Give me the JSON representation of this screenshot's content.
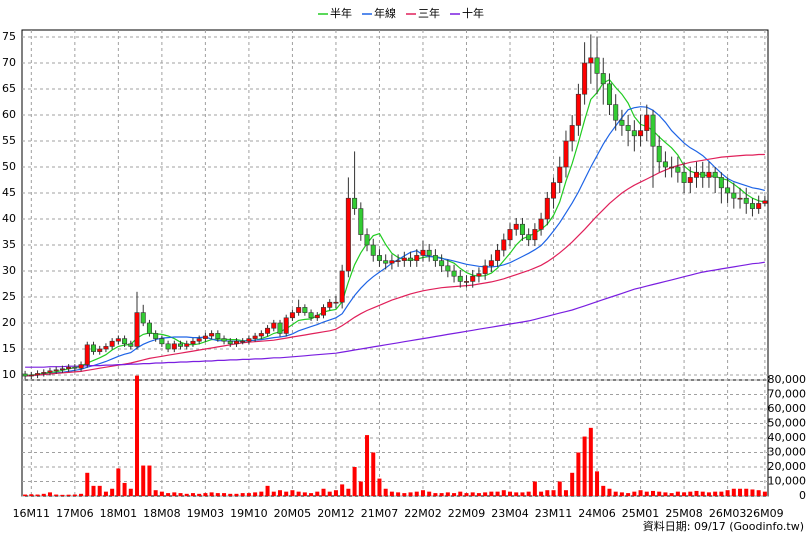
{
  "chart_data": {
    "type": "candlestick",
    "annotation": "資料日期: 09/17 (Goodinfo.tw)",
    "up_color": "#ff0000",
    "down_color": "#33cc33",
    "categories": [
      null,
      "16M11",
      null,
      null,
      null,
      null,
      null,
      null,
      "17M06",
      null,
      null,
      null,
      null,
      null,
      null,
      "18M01",
      null,
      null,
      null,
      null,
      null,
      null,
      "18M08",
      null,
      null,
      null,
      null,
      null,
      null,
      "19M03",
      null,
      null,
      null,
      null,
      null,
      null,
      "19M10",
      null,
      null,
      null,
      null,
      null,
      null,
      "20M05",
      null,
      null,
      null,
      null,
      null,
      null,
      "20M12",
      null,
      null,
      null,
      null,
      null,
      null,
      "21M07",
      null,
      null,
      null,
      null,
      null,
      null,
      "22M02",
      null,
      null,
      null,
      null,
      null,
      null,
      "22M09",
      null,
      null,
      null,
      null,
      null,
      null,
      "23M04",
      null,
      null,
      null,
      null,
      null,
      null,
      "23M11",
      null,
      null,
      null,
      null,
      null,
      null,
      "24M06",
      null,
      null,
      null,
      null,
      null,
      null,
      "25M01",
      null,
      null,
      null,
      null,
      null,
      null,
      "25M08",
      null,
      null,
      null,
      null,
      null,
      null,
      "26M03",
      null,
      null,
      null,
      null,
      null,
      "26M09"
    ],
    "open": [
      10.2,
      9.8,
      10,
      10.3,
      10.5,
      10.8,
      11,
      11.2,
      11.5,
      11.3,
      12,
      15.8,
      14.5,
      15,
      15.5,
      16.5,
      17,
      16,
      15.5,
      22,
      20,
      18,
      17,
      16,
      15,
      16,
      15.5,
      16,
      16.5,
      17,
      17.5,
      18,
      17,
      16.5,
      16,
      16.5,
      16.5,
      17,
      17.5,
      18,
      19,
      20,
      18,
      21,
      22,
      23,
      22,
      21,
      21.5,
      23,
      24,
      24,
      30,
      44,
      42,
      37,
      35,
      33,
      32,
      31.5,
      32,
      32,
      32.5,
      32,
      33,
      34,
      33,
      32,
      31,
      30,
      29,
      28,
      28,
      29,
      29.5,
      31,
      32,
      34,
      36,
      38,
      39,
      37,
      36,
      38,
      40,
      44,
      47,
      50,
      55,
      58,
      64,
      70,
      71,
      68,
      66,
      62,
      59,
      58,
      57,
      56,
      57,
      60,
      54,
      51,
      50,
      50,
      49,
      47,
      48,
      49,
      48,
      49,
      48,
      46,
      45,
      44,
      44,
      43,
      42,
      43
    ],
    "high": [
      10.8,
      10.6,
      10.9,
      11.1,
      11.4,
      11.6,
      11.8,
      12.1,
      12.1,
      12.6,
      16.4,
      16.4,
      15.6,
      16.1,
      17.1,
      17.6,
      17.6,
      16.6,
      26,
      23.5,
      20.6,
      18.6,
      17.6,
      16.6,
      16.6,
      16.6,
      16.6,
      17.1,
      17.6,
      18.1,
      18.6,
      18.6,
      17.6,
      17.1,
      17.1,
      17.1,
      17.6,
      18.1,
      18.6,
      19.6,
      20.6,
      20.6,
      21.6,
      22.6,
      24.5,
      23.6,
      22.6,
      22.1,
      23.6,
      24.6,
      25.2,
      31.2,
      48,
      53,
      43.2,
      38.2,
      36.2,
      34.2,
      33.2,
      33.2,
      33.2,
      33.7,
      33.7,
      34.2,
      35.8,
      35.2,
      34.2,
      33.2,
      32.2,
      31.2,
      30.2,
      29.2,
      30.2,
      30.7,
      32.2,
      33.2,
      35.2,
      37.2,
      39.2,
      40.2,
      40.2,
      38.2,
      39.2,
      41.2,
      45.2,
      48,
      52,
      57,
      60,
      66,
      74,
      75.5,
      75,
      71,
      68,
      64,
      61,
      60,
      59,
      60,
      62,
      61,
      56,
      53,
      52,
      52,
      51,
      50,
      51,
      51,
      51,
      50,
      49,
      48,
      47,
      46,
      46,
      44,
      44.5,
      44.5
    ],
    "low": [
      9.2,
      9.2,
      9.4,
      9.7,
      9.9,
      10.2,
      10.4,
      10.6,
      10.7,
      10.7,
      11.4,
      13.9,
      13.9,
      14.4,
      14.9,
      15.9,
      15.4,
      14.9,
      14.9,
      19.4,
      17.4,
      16.4,
      15.4,
      14.4,
      14.4,
      14.9,
      14.9,
      15.4,
      15.9,
      16.4,
      16.9,
      16.4,
      15.9,
      15.4,
      15.4,
      15.9,
      15.9,
      16.4,
      16.9,
      17.4,
      18.4,
      17.4,
      17.4,
      20.4,
      21.4,
      21.4,
      20.4,
      20.4,
      20.9,
      22.4,
      22.8,
      22.8,
      28.8,
      40.8,
      35.8,
      33.8,
      31.8,
      30.8,
      30.3,
      30.3,
      30.8,
      30.8,
      30.8,
      30.8,
      31.8,
      31.8,
      30.8,
      29.8,
      28.8,
      27.8,
      26.8,
      26.8,
      26.8,
      27.8,
      28.3,
      29.8,
      30.8,
      32.8,
      34.8,
      36.8,
      35.8,
      34.8,
      34.8,
      36.8,
      38.8,
      42,
      45,
      48,
      53,
      56,
      62,
      66,
      64,
      62,
      60,
      57,
      56,
      54,
      53,
      54,
      55,
      46,
      49,
      48,
      48,
      47,
      45,
      45,
      46,
      46,
      46,
      45,
      43,
      43,
      42,
      42,
      41,
      40.5,
      41,
      42.5
    ],
    "close": [
      9.8,
      10,
      10.3,
      10.5,
      10.8,
      11,
      11.2,
      11.5,
      11.3,
      12,
      15.8,
      14.5,
      15,
      15.5,
      16.5,
      17,
      16,
      15.5,
      22,
      20,
      18,
      17,
      16,
      15,
      16,
      15.5,
      16,
      16.5,
      17,
      17.5,
      18,
      17,
      16.5,
      16,
      16.5,
      16.5,
      17,
      17.5,
      18,
      19,
      20,
      18,
      21,
      22,
      23,
      22,
      21,
      21.5,
      23,
      24,
      24,
      30,
      44,
      42,
      37,
      35,
      33,
      32,
      31.5,
      32,
      32,
      32.5,
      32,
      33,
      34,
      33,
      32,
      31,
      30,
      29,
      28,
      28,
      29,
      29.5,
      31,
      32,
      34,
      36,
      38,
      39,
      37,
      36,
      38,
      40,
      44,
      47,
      50,
      55,
      58,
      64,
      70,
      71,
      68,
      66,
      62,
      59,
      58,
      57,
      56,
      57,
      60,
      54,
      51,
      50,
      50,
      49,
      47,
      48,
      49,
      48,
      49,
      48,
      46,
      45,
      44,
      44,
      43,
      42,
      43,
      43.5
    ],
    "ylim": [
      9.04,
      76.35
    ],
    "yticks": [
      10,
      15,
      20,
      25,
      30,
      35,
      40,
      45,
      50,
      55,
      60,
      65,
      70,
      75
    ],
    "grid": true,
    "series": [
      {
        "name": "半年",
        "color": "#22cc22",
        "values": [
          9.9,
          10,
          10.1,
          10.3,
          10.5,
          10.6,
          10.9,
          11.2,
          11.4,
          11.7,
          12.3,
          12.8,
          13.3,
          13.9,
          14.8,
          15.5,
          15.75,
          15.9,
          17.1,
          17.8,
          18.1,
          17.9,
          17.8,
          17.5,
          17,
          16.3,
          15.9,
          15.8,
          16,
          16.4,
          16.8,
          16.9,
          16.9,
          16.8,
          16.8,
          16.6,
          16.6,
          16.7,
          17,
          17.4,
          18,
          18.3,
          18.9,
          19.7,
          20.5,
          20.7,
          20.8,
          21.4,
          22.1,
          22.4,
          22.6,
          24.1,
          27.9,
          31.2,
          33.5,
          35.3,
          36.8,
          37.2,
          35.1,
          33.4,
          32.6,
          32.2,
          32,
          32.3,
          32.6,
          32.8,
          32.8,
          32.5,
          32,
          31.5,
          30.5,
          29.7,
          29.2,
          29,
          29.1,
          29.6,
          30.6,
          32,
          33.4,
          35,
          36.2,
          36.7,
          37.3,
          38,
          39,
          40.7,
          43.3,
          47.3,
          50.7,
          54.7,
          59,
          63,
          64.3,
          66.2,
          66.8,
          65.3,
          64,
          62.3,
          59.7,
          58.2,
          57.8,
          57,
          55.8,
          54.7,
          53.7,
          52.3,
          50.2,
          49.2,
          48.8,
          48.5,
          48.3,
          48.2,
          47.8,
          47.5,
          46.7,
          45.8,
          44.8,
          44,
          43.5,
          43.3
        ]
      },
      {
        "name": "年線",
        "color": "#1e64e6",
        "values": [
          9.8,
          9.9,
          10,
          10.1,
          10.2,
          10.4,
          10.5,
          10.7,
          10.9,
          11.1,
          11.5,
          11.8,
          12.2,
          12.6,
          13.1,
          13.6,
          14,
          14.3,
          15.2,
          15.9,
          16.4,
          16.8,
          17.1,
          17.2,
          17.3,
          17.3,
          17.3,
          17.2,
          17.2,
          17.3,
          16.9,
          16.6,
          16.6,
          16.5,
          16.5,
          16.5,
          16.6,
          16.7,
          16.8,
          17,
          17.2,
          17.3,
          17.5,
          17.9,
          18.5,
          18.9,
          19.3,
          19.7,
          20.2,
          20.6,
          21,
          21.8,
          23.6,
          25.3,
          26.7,
          27.9,
          28.9,
          29.8,
          30.6,
          31.5,
          32.2,
          32.9,
          33.6,
          33.9,
          33.1,
          32.8,
          32.7,
          32.4,
          32.2,
          31.9,
          31.6,
          31.3,
          31.1,
          30.9,
          30.8,
          30.8,
          30.9,
          31.2,
          31.6,
          32.2,
          32.8,
          33.4,
          34.1,
          34.9,
          36.2,
          37.7,
          39.3,
          41.2,
          43.1,
          45.2,
          47.6,
          50,
          52.2,
          54.4,
          56.3,
          57.9,
          59.5,
          61,
          61.4,
          61.6,
          61.5,
          60.9,
          59.9,
          58.6,
          57,
          55.8,
          54.6,
          53.7,
          53,
          52.2,
          51.1,
          49.9,
          48.8,
          47.8,
          47.2,
          46.8,
          46.4,
          46,
          45.8,
          45.5
        ]
      },
      {
        "name": "三年",
        "color": "#e0205a",
        "values": [
          9.8,
          9.9,
          10,
          10.1,
          10.2,
          10.3,
          10.4,
          10.5,
          10.6,
          10.7,
          10.9,
          11.1,
          11.3,
          11.5,
          11.7,
          11.9,
          12.1,
          12.3,
          12.6,
          12.9,
          13.2,
          13.4,
          13.6,
          13.8,
          14,
          14.2,
          14.4,
          14.6,
          14.8,
          15,
          15.2,
          15.4,
          15.6,
          15.8,
          16,
          16.2,
          16.3,
          16.4,
          16.5,
          16.6,
          16.7,
          16.9,
          17.1,
          17.3,
          17.5,
          17.7,
          17.9,
          18.1,
          18.3,
          18.5,
          18.8,
          19.5,
          20.3,
          21.1,
          21.8,
          22.4,
          22.9,
          23.4,
          23.9,
          24.4,
          24.8,
          25.2,
          25.6,
          25.9,
          26.2,
          26.4,
          26.6,
          26.8,
          26.9,
          27,
          27.1,
          27.2,
          27.3,
          27.5,
          27.7,
          27.9,
          28.2,
          28.5,
          28.9,
          29.3,
          29.7,
          30.1,
          30.6,
          31.1,
          31.8,
          32.6,
          33.5,
          34.5,
          35.6,
          36.8,
          38,
          39.3,
          40.6,
          41.8,
          43,
          44,
          45,
          45.8,
          46.5,
          47.1,
          47.7,
          48.3,
          48.9,
          49.4,
          49.9,
          50.3,
          50.6,
          50.9,
          51.1,
          51.3,
          51.5,
          51.7,
          51.9,
          52,
          52.1,
          52.2,
          52.3,
          52.3,
          52.4,
          52.4
        ]
      },
      {
        "name": "十年",
        "color": "#7a1ee0",
        "values": [
          11.5,
          11.5,
          11.5,
          11.5,
          11.6,
          11.6,
          11.6,
          11.7,
          11.7,
          11.7,
          11.8,
          11.8,
          11.8,
          11.9,
          11.9,
          12,
          12,
          12.1,
          12.1,
          12.2,
          12.2,
          12.3,
          12.3,
          12.4,
          12.4,
          12.5,
          12.5,
          12.6,
          12.6,
          12.7,
          12.7,
          12.8,
          12.8,
          12.9,
          12.9,
          13,
          13,
          13.1,
          13.1,
          13.2,
          13.3,
          13.3,
          13.4,
          13.5,
          13.6,
          13.7,
          13.8,
          13.9,
          14,
          14.1,
          14.2,
          14.4,
          14.6,
          14.8,
          15,
          15.2,
          15.4,
          15.6,
          15.8,
          16,
          16.2,
          16.4,
          16.6,
          16.8,
          17,
          17.2,
          17.4,
          17.6,
          17.8,
          18,
          18.2,
          18.4,
          18.6,
          18.8,
          19,
          19.2,
          19.4,
          19.6,
          19.8,
          20,
          20.2,
          20.4,
          20.7,
          21,
          21.3,
          21.6,
          21.9,
          22.2,
          22.5,
          22.9,
          23.3,
          23.7,
          24.1,
          24.5,
          24.9,
          25.3,
          25.7,
          26.1,
          26.5,
          26.8,
          27.1,
          27.4,
          27.7,
          28,
          28.3,
          28.6,
          28.9,
          29.2,
          29.5,
          29.8,
          30,
          30.2,
          30.4,
          30.6,
          30.8,
          31,
          31.2,
          31.4,
          31.5,
          31.7
        ]
      }
    ],
    "volume": {
      "color": "#ff0000",
      "values": [
        1000,
        1200,
        1000,
        1500,
        2500,
        1000,
        800,
        900,
        1000,
        1500,
        16000,
        7000,
        7000,
        3000,
        5000,
        19000,
        9000,
        5000,
        83000,
        21000,
        21000,
        4000,
        3000,
        2000,
        2500,
        2000,
        1500,
        2000,
        1500,
        2000,
        2500,
        2000,
        2000,
        1500,
        1500,
        2000,
        2000,
        2500,
        3000,
        7000,
        3000,
        4000,
        3000,
        4000,
        3000,
        2500,
        2000,
        3000,
        5000,
        3000,
        4000,
        8000,
        5000,
        20000,
        10000,
        42000,
        30000,
        12000,
        5000,
        3000,
        2500,
        2000,
        2500,
        3000,
        4000,
        3000,
        2000,
        2000,
        2500,
        2000,
        3000,
        2000,
        2500,
        2000,
        2500,
        3000,
        3000,
        4000,
        3000,
        2500,
        2500,
        3000,
        10000,
        3000,
        4000,
        4000,
        10000,
        4000,
        16000,
        30000,
        41000,
        47000,
        17000,
        7000,
        5000,
        3000,
        2500,
        2000,
        3000,
        4000,
        3000,
        3500,
        3000,
        2500,
        2000,
        3000,
        2500,
        3000,
        3500,
        3000,
        2500,
        3000,
        3000,
        4000,
        5000,
        5000,
        5000,
        4500,
        4000,
        3000
      ],
      "ylim": [
        0,
        80000
      ],
      "yticks": [
        0,
        {
          "value": 10000,
          "label": "10,000"
        },
        {
          "value": 20000,
          "label": "20,000"
        },
        {
          "value": 30000,
          "label": "30,000"
        },
        {
          "value": 40000,
          "label": "40,000"
        },
        {
          "value": 50000,
          "label": "50,000"
        },
        {
          "value": 60000,
          "label": "60,000"
        },
        {
          "value": 70000,
          "label": "70,000"
        },
        {
          "value": 80000,
          "label": "80,000"
        }
      ]
    }
  }
}
